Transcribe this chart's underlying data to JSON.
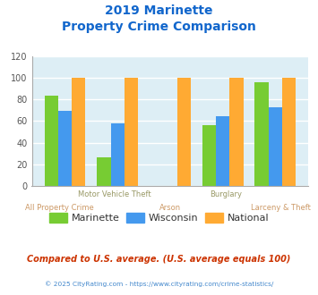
{
  "title_line1": "2019 Marinette",
  "title_line2": "Property Crime Comparison",
  "categories": [
    "All Property Crime",
    "Motor Vehicle Theft",
    "Arson",
    "Burglary",
    "Larceny & Theft"
  ],
  "marinette": [
    83,
    26,
    0,
    56,
    96
  ],
  "wisconsin": [
    69,
    58,
    0,
    64,
    73
  ],
  "national": [
    100,
    100,
    100,
    100,
    100
  ],
  "color_marinette": "#77cc33",
  "color_wisconsin": "#4499ee",
  "color_national": "#ffaa33",
  "ylim": [
    0,
    120
  ],
  "yticks": [
    0,
    20,
    40,
    60,
    80,
    100,
    120
  ],
  "bg_color": "#ddeef5",
  "grid_color": "#ffffff",
  "title_color": "#1166cc",
  "xlabel_color_top": "#999966",
  "xlabel_color_bot": "#cc9966",
  "footer_note": "Compared to U.S. average. (U.S. average equals 100)",
  "footer_copy": "© 2025 CityRating.com - https://www.cityrating.com/crime-statistics/",
  "legend_labels": [
    "Marinette",
    "Wisconsin",
    "National"
  ],
  "x_top_labels": [
    "",
    "Motor Vehicle Theft",
    "",
    "Burglary",
    ""
  ],
  "x_bot_labels": [
    "All Property Crime",
    "",
    "Arson",
    "",
    "Larceny & Theft"
  ]
}
